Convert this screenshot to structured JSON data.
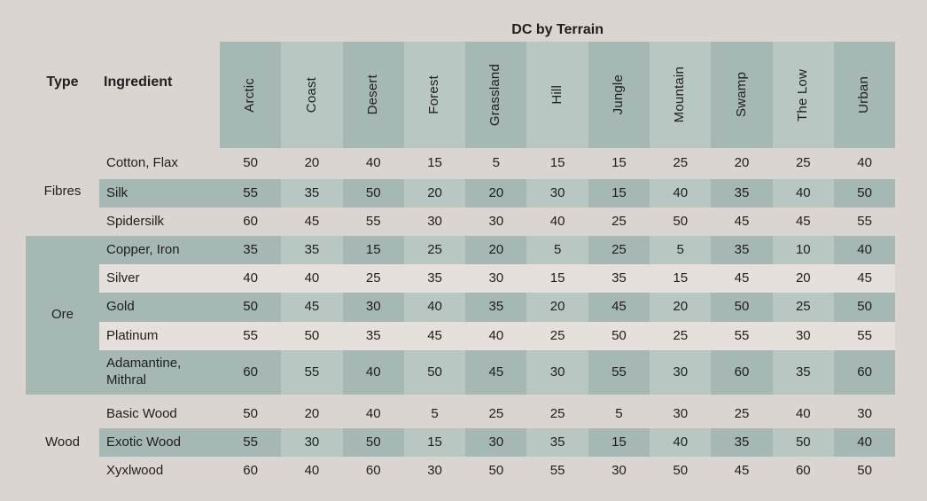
{
  "title": "DC by Terrain",
  "columns": {
    "type_label": "Type",
    "ingredient_label": "Ingredient",
    "terrains": [
      "Arctic",
      "Coast",
      "Desert",
      "Forest",
      "Grassland",
      "Hill",
      "Jungle",
      "Mountain",
      "Swamp",
      "The Low",
      "Urban"
    ]
  },
  "groups": [
    {
      "type": "Fibres",
      "style": "plain",
      "rows": [
        {
          "ingredient": "Cotton, Flax",
          "tone": "plain",
          "values": [
            50,
            20,
            40,
            15,
            5,
            15,
            15,
            25,
            20,
            25,
            40
          ]
        },
        {
          "ingredient": "Silk",
          "tone": "green",
          "values": [
            55,
            35,
            50,
            20,
            20,
            30,
            15,
            40,
            35,
            40,
            50
          ]
        },
        {
          "ingredient": "Spidersilk",
          "tone": "plain",
          "values": [
            60,
            45,
            55,
            30,
            30,
            40,
            25,
            50,
            45,
            45,
            55
          ]
        }
      ]
    },
    {
      "type": "Ore",
      "style": "block",
      "rows": [
        {
          "ingredient": "Copper, Iron",
          "tone": "green",
          "values": [
            35,
            35,
            15,
            25,
            20,
            5,
            25,
            5,
            35,
            10,
            40
          ]
        },
        {
          "ingredient": "Silver",
          "tone": "cream",
          "values": [
            40,
            40,
            25,
            35,
            30,
            15,
            35,
            15,
            45,
            20,
            45
          ]
        },
        {
          "ingredient": "Gold",
          "tone": "green",
          "values": [
            50,
            45,
            30,
            40,
            35,
            20,
            45,
            20,
            50,
            25,
            50
          ]
        },
        {
          "ingredient": "Platinum",
          "tone": "cream",
          "values": [
            55,
            50,
            35,
            45,
            40,
            25,
            50,
            25,
            55,
            30,
            55
          ]
        },
        {
          "ingredient": "Adamantine, Mithral",
          "tone": "green",
          "values": [
            60,
            55,
            40,
            50,
            45,
            30,
            55,
            30,
            60,
            35,
            60
          ]
        }
      ]
    },
    {
      "type": "Wood",
      "style": "plain",
      "rows": [
        {
          "ingredient": "Basic Wood",
          "tone": "plain",
          "values": [
            50,
            20,
            40,
            5,
            25,
            25,
            5,
            30,
            25,
            40,
            30
          ]
        },
        {
          "ingredient": "Exotic Wood",
          "tone": "green",
          "values": [
            55,
            30,
            50,
            15,
            30,
            35,
            15,
            40,
            35,
            50,
            40
          ]
        },
        {
          "ingredient": "Xyxlwood",
          "tone": "plain",
          "values": [
            60,
            40,
            60,
            30,
            50,
            55,
            30,
            50,
            45,
            60,
            50
          ]
        }
      ]
    }
  ],
  "colors": {
    "page_background": "#dbd5d2",
    "cell_dark_sage": "#a5b8b3",
    "cell_light_sage": "#b9c7c2",
    "row_cream": "#e6e0dd",
    "text": "#1e1e1e"
  }
}
